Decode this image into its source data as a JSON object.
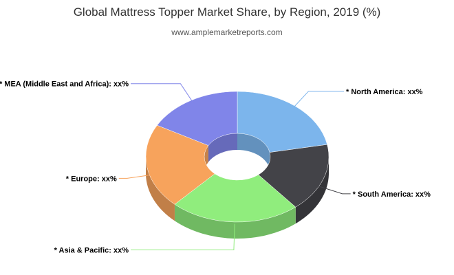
{
  "header": {
    "title": "Global Mattress Topper Market Share, by Region, 2019 (%)",
    "subtitle": "www.amplemarketreports.com"
  },
  "chart_data": {
    "type": "pie",
    "variant": "3d-donut",
    "title": "Global Mattress Topper Market Share, by Region, 2019 (%)",
    "subtitle": "www.amplemarketreports.com",
    "categories": [
      "North America",
      "South America",
      "Asia & Pacific",
      "Europe",
      "MEA (Middle East and Africa)"
    ],
    "values": [
      22,
      17,
      23,
      21,
      17
    ],
    "labels": [
      "* North America: xx%",
      "* South America: xx%",
      "* Asia & Pacific: xx%",
      "* Europe: xx%",
      "* MEA (Middle East and Africa): xx%"
    ],
    "colors": [
      "#7cb5ec",
      "#434348",
      "#90ed7d",
      "#f7a35c",
      "#8085e9"
    ],
    "legend": "none"
  }
}
